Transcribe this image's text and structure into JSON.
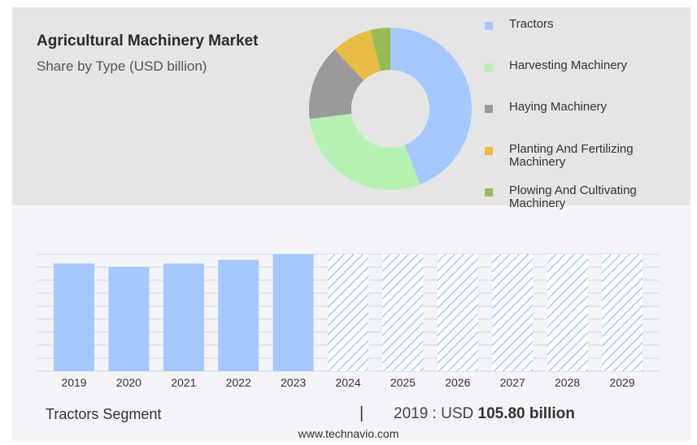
{
  "header": {
    "title": "Agricultural Machinery Market",
    "subtitle": "Share by Type (USD billion)"
  },
  "chart_data": [
    {
      "type": "pie",
      "donut": true,
      "legend_position": "right",
      "slices": [
        {
          "label": "Tractors",
          "value": 44,
          "color": "#a4c8ff"
        },
        {
          "label": "Harvesting Machinery",
          "value": 29,
          "color": "#b5f1b1"
        },
        {
          "label": "Haying Machinery",
          "value": 15,
          "color": "#9a9a9a"
        },
        {
          "label": "Planting And Fertilizing Machinery",
          "value": 8,
          "color": "#e9bd45"
        },
        {
          "label": "Plowing And Cultivating Machinery",
          "value": 4,
          "color": "#99bb55"
        }
      ]
    },
    {
      "type": "bar",
      "categories": [
        "2019",
        "2020",
        "2021",
        "2022",
        "2023",
        "2024",
        "2025",
        "2026",
        "2027",
        "2028",
        "2029"
      ],
      "values": [
        105.8,
        102.5,
        105.8,
        109.5,
        115.0,
        115.0,
        115.0,
        115.0,
        115.0,
        115.0,
        115.0
      ],
      "forecast_from_index": 5,
      "ylim": [
        0,
        115
      ],
      "grid": true,
      "bar_color": "#a4c8ff",
      "forecast_style": "hatched"
    }
  ],
  "footer": {
    "segment": "Tractors Segment",
    "separator": "|",
    "year_prefix": "2019 : USD",
    "value": "105.80 billion",
    "url": "www.technavio.com"
  }
}
